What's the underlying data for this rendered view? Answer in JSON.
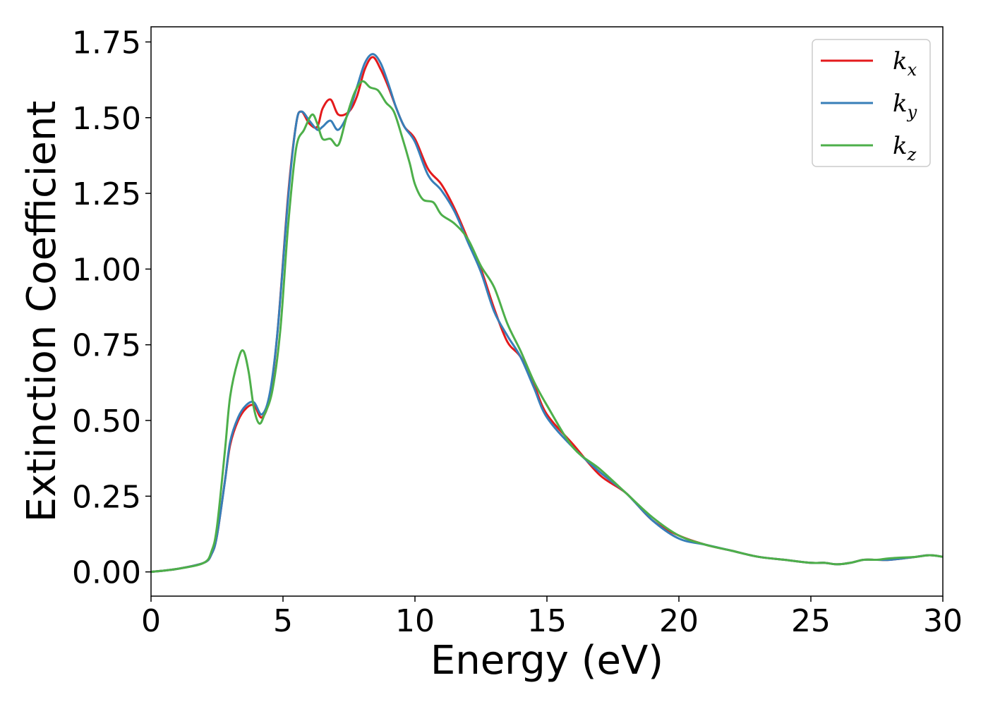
{
  "chart_data": {
    "type": "line",
    "title": "",
    "xlabel": "Energy (eV)",
    "ylabel": "Extinction Coefficient",
    "xlim": [
      0,
      30
    ],
    "ylim": [
      -0.08,
      1.8
    ],
    "xticks": [
      0,
      5,
      10,
      15,
      20,
      25,
      30
    ],
    "xtick_labels": [
      "0",
      "5",
      "10",
      "15",
      "20",
      "25",
      "30"
    ],
    "yticks": [
      0.0,
      0.25,
      0.5,
      0.75,
      1.0,
      1.25,
      1.5,
      1.75
    ],
    "ytick_labels": [
      "0.00",
      "0.25",
      "0.50",
      "0.75",
      "1.00",
      "1.25",
      "1.50",
      "1.75"
    ],
    "grid": false,
    "legend_position": "top-right",
    "series": [
      {
        "name": "k_x",
        "legend_base": "k",
        "legend_sub": "x",
        "color": "#e41a1c",
        "x": [
          0,
          1,
          2,
          2.3,
          2.5,
          2.8,
          3.0,
          3.3,
          3.6,
          3.9,
          4.2,
          4.5,
          4.8,
          5.2,
          5.5,
          5.7,
          6.0,
          6.3,
          6.5,
          6.8,
          7.1,
          7.5,
          7.8,
          8.1,
          8.4,
          8.7,
          9.0,
          9.3,
          9.6,
          10.0,
          10.5,
          11.0,
          11.5,
          12.0,
          12.5,
          13.0,
          13.5,
          14.0,
          14.5,
          15.0,
          16.0,
          17.0,
          18.0,
          19.0,
          20.0,
          21.0,
          22.0,
          23.0,
          24.0,
          25.0,
          25.5,
          26.0,
          26.5,
          27.0,
          27.5,
          28.0,
          29.0,
          29.5,
          30.0
        ],
        "y": [
          0.0,
          0.01,
          0.03,
          0.06,
          0.12,
          0.3,
          0.42,
          0.5,
          0.54,
          0.55,
          0.51,
          0.58,
          0.8,
          1.25,
          1.48,
          1.52,
          1.48,
          1.47,
          1.53,
          1.56,
          1.51,
          1.52,
          1.57,
          1.66,
          1.7,
          1.66,
          1.6,
          1.53,
          1.47,
          1.43,
          1.33,
          1.28,
          1.2,
          1.1,
          1.0,
          0.87,
          0.76,
          0.71,
          0.62,
          0.52,
          0.42,
          0.32,
          0.26,
          0.17,
          0.12,
          0.09,
          0.07,
          0.05,
          0.04,
          0.03,
          0.03,
          0.025,
          0.03,
          0.04,
          0.04,
          0.04,
          0.05,
          0.055,
          0.05
        ]
      },
      {
        "name": "k_y",
        "legend_base": "k",
        "legend_sub": "y",
        "color": "#377eb8",
        "x": [
          0,
          1,
          2,
          2.3,
          2.5,
          2.8,
          3.0,
          3.3,
          3.6,
          3.9,
          4.2,
          4.5,
          4.8,
          5.2,
          5.5,
          5.7,
          6.0,
          6.3,
          6.5,
          6.8,
          7.1,
          7.5,
          7.8,
          8.1,
          8.4,
          8.7,
          9.0,
          9.3,
          9.6,
          10.0,
          10.5,
          11.0,
          11.5,
          12.0,
          12.5,
          13.0,
          13.5,
          14.0,
          14.5,
          15.0,
          16.0,
          17.0,
          18.0,
          19.0,
          20.0,
          21.0,
          22.0,
          23.0,
          24.0,
          25.0,
          25.5,
          26.0,
          26.5,
          27.0,
          27.5,
          28.0,
          29.0,
          29.5,
          30.0
        ],
        "y": [
          0.0,
          0.01,
          0.03,
          0.06,
          0.12,
          0.3,
          0.43,
          0.51,
          0.55,
          0.56,
          0.52,
          0.59,
          0.8,
          1.24,
          1.48,
          1.52,
          1.49,
          1.46,
          1.47,
          1.49,
          1.46,
          1.52,
          1.6,
          1.68,
          1.71,
          1.68,
          1.61,
          1.53,
          1.47,
          1.42,
          1.31,
          1.26,
          1.19,
          1.09,
          0.99,
          0.86,
          0.78,
          0.71,
          0.61,
          0.51,
          0.41,
          0.33,
          0.26,
          0.17,
          0.11,
          0.09,
          0.07,
          0.05,
          0.04,
          0.03,
          0.03,
          0.025,
          0.03,
          0.04,
          0.04,
          0.04,
          0.05,
          0.055,
          0.05
        ]
      },
      {
        "name": "k_z",
        "legend_base": "k",
        "legend_sub": "z",
        "color": "#4daf4a",
        "x": [
          0,
          1,
          2,
          2.3,
          2.5,
          2.8,
          3.0,
          3.3,
          3.5,
          3.7,
          3.9,
          4.1,
          4.3,
          4.6,
          4.9,
          5.2,
          5.5,
          5.8,
          6.1,
          6.3,
          6.5,
          6.8,
          7.1,
          7.4,
          7.7,
          8.0,
          8.3,
          8.6,
          8.9,
          9.2,
          9.5,
          9.8,
          10.0,
          10.3,
          10.7,
          11.0,
          11.5,
          12.0,
          12.5,
          13.0,
          13.5,
          14.0,
          14.5,
          15.0,
          16.0,
          17.0,
          18.0,
          19.0,
          20.0,
          21.0,
          22.0,
          23.0,
          24.0,
          25.0,
          25.5,
          26.0,
          26.5,
          27.0,
          27.5,
          28.0,
          29.0,
          29.5,
          30.0
        ],
        "y": [
          0.0,
          0.01,
          0.03,
          0.07,
          0.15,
          0.4,
          0.58,
          0.7,
          0.73,
          0.66,
          0.54,
          0.49,
          0.52,
          0.6,
          0.8,
          1.15,
          1.4,
          1.46,
          1.51,
          1.48,
          1.43,
          1.43,
          1.41,
          1.5,
          1.58,
          1.62,
          1.6,
          1.59,
          1.55,
          1.52,
          1.44,
          1.35,
          1.28,
          1.23,
          1.22,
          1.18,
          1.15,
          1.1,
          1.01,
          0.94,
          0.82,
          0.73,
          0.63,
          0.55,
          0.41,
          0.34,
          0.26,
          0.18,
          0.12,
          0.09,
          0.07,
          0.05,
          0.04,
          0.03,
          0.03,
          0.025,
          0.03,
          0.04,
          0.04,
          0.045,
          0.05,
          0.055,
          0.05
        ]
      }
    ]
  }
}
